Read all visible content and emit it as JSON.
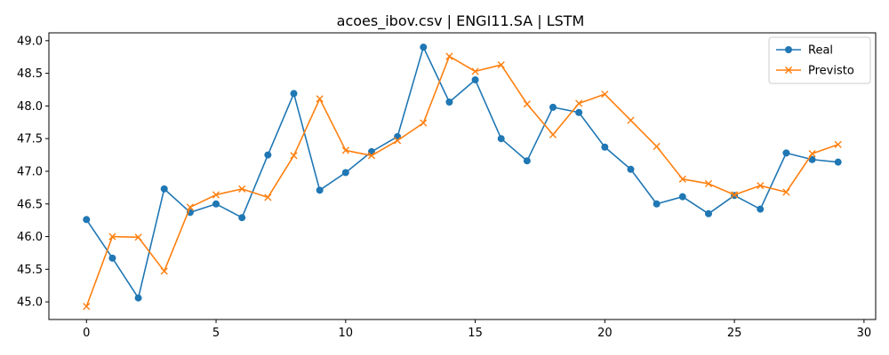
{
  "chart_data": {
    "type": "line",
    "title": "acoes_ibov.csv | ENGI11.SA | LSTM",
    "xlabel": "",
    "ylabel": "",
    "xlim": [
      -1.45,
      30.45
    ],
    "ylim": [
      44.73,
      49.12
    ],
    "x_ticks": [
      0,
      5,
      10,
      15,
      20,
      25,
      30
    ],
    "x_tick_labels": [
      "0",
      "5",
      "10",
      "15",
      "20",
      "25",
      "30"
    ],
    "y_ticks": [
      45.0,
      45.5,
      46.0,
      46.5,
      47.0,
      47.5,
      48.0,
      48.5,
      49.0
    ],
    "y_tick_labels": [
      "45.0",
      "45.5",
      "46.0",
      "46.5",
      "47.0",
      "47.5",
      "48.0",
      "48.5",
      "49.0"
    ],
    "grid": false,
    "legend_position": "top-right",
    "x": [
      0,
      1,
      2,
      3,
      4,
      5,
      6,
      7,
      8,
      9,
      10,
      11,
      12,
      13,
      14,
      15,
      16,
      17,
      18,
      19,
      20,
      21,
      22,
      23,
      24,
      25,
      26,
      27,
      28,
      29
    ],
    "series": [
      {
        "name": "Real",
        "color": "#1f77b4",
        "marker": "circle",
        "values": [
          46.26,
          45.67,
          45.06,
          46.73,
          46.37,
          46.5,
          46.29,
          47.25,
          48.19,
          46.71,
          46.98,
          47.3,
          47.53,
          48.9,
          48.06,
          48.4,
          47.5,
          47.16,
          47.98,
          47.9,
          47.37,
          47.03,
          46.5,
          46.61,
          46.35,
          46.63,
          46.42,
          47.28,
          47.18,
          47.14
        ]
      },
      {
        "name": "Previsto",
        "color": "#ff7f0e",
        "marker": "x",
        "values": [
          44.93,
          46.0,
          45.99,
          45.47,
          46.45,
          46.64,
          46.73,
          46.6,
          47.24,
          48.11,
          47.32,
          47.24,
          47.47,
          47.74,
          48.76,
          48.53,
          48.63,
          48.03,
          47.56,
          48.04,
          48.18,
          47.78,
          47.38,
          46.88,
          46.81,
          46.64,
          46.78,
          46.68,
          47.27,
          47.41
        ]
      }
    ]
  }
}
